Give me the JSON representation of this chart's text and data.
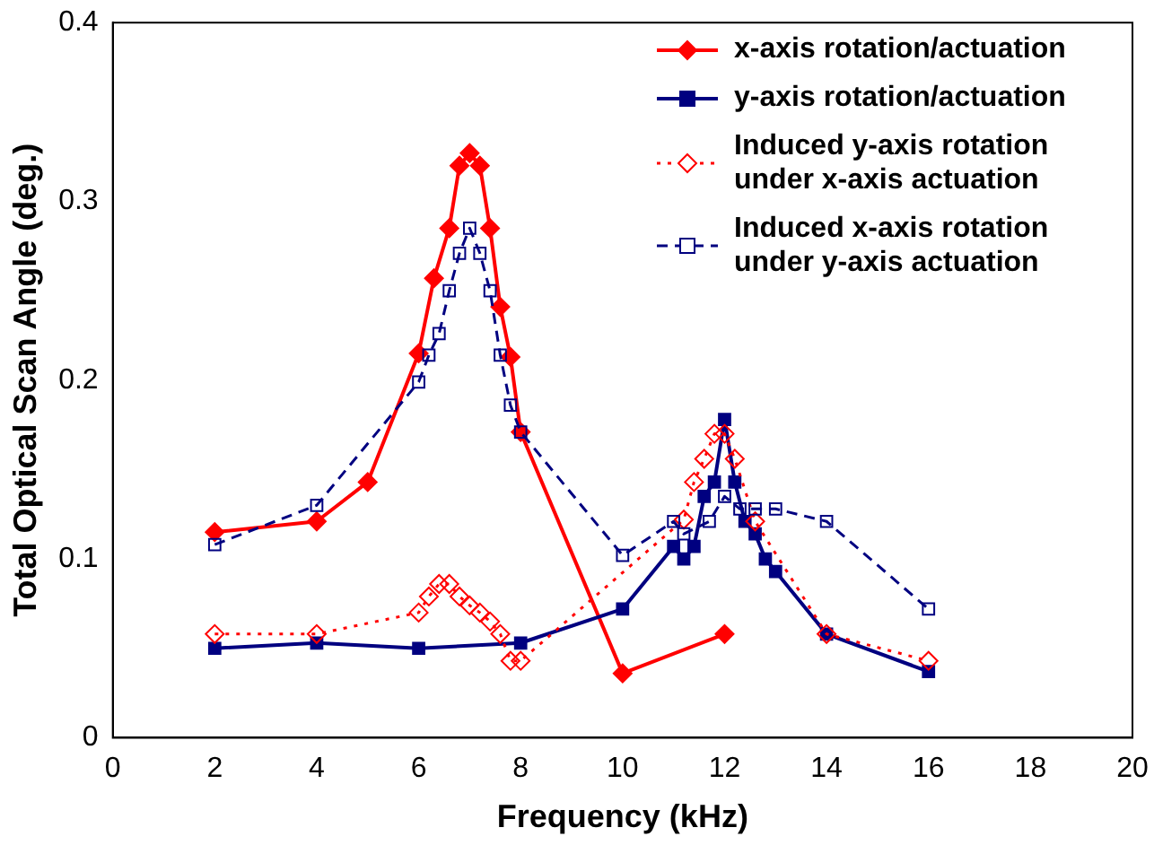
{
  "chart_data": {
    "type": "line",
    "xlabel": "Frequency (kHz)",
    "ylabel": "Total Optical Scan Angle (deg.)",
    "xlim": [
      0,
      20
    ],
    "xticks": [
      0,
      2,
      4,
      6,
      8,
      10,
      12,
      14,
      16,
      18,
      20
    ],
    "ylim": [
      0,
      0.4
    ],
    "yticks": [
      0,
      0.1,
      0.2,
      0.3,
      0.4
    ],
    "grid": false,
    "legend": "top right",
    "series": [
      {
        "name": "x-axis rotation/actuation",
        "color": "#ff0000",
        "marker": "diamond",
        "line_style": "solid",
        "x": [
          2,
          4,
          5,
          6,
          6.3,
          6.6,
          6.8,
          7,
          7.2,
          7.4,
          7.6,
          7.8,
          8,
          10,
          12
        ],
        "values": [
          0.115,
          0.121,
          0.143,
          0.215,
          0.257,
          0.285,
          0.32,
          0.327,
          0.32,
          0.285,
          0.241,
          0.213,
          0.171,
          0.036,
          0.058
        ]
      },
      {
        "name": "y-axis rotation/actuation",
        "color": "#000080",
        "marker": "square",
        "line_style": "solid",
        "x": [
          2,
          4,
          6,
          8,
          10,
          11,
          11.2,
          11.4,
          11.6,
          11.8,
          12,
          12.2,
          12.4,
          12.6,
          12.8,
          13,
          14,
          16
        ],
        "values": [
          0.05,
          0.053,
          0.05,
          0.053,
          0.072,
          0.107,
          0.1,
          0.107,
          0.135,
          0.143,
          0.178,
          0.143,
          0.121,
          0.114,
          0.1,
          0.093,
          0.058,
          0.037
        ]
      },
      {
        "name": "Induced y-axis rotation under x-axis actuation",
        "color": "#ff0000",
        "marker": "diamond",
        "line_style": "dotted",
        "x": [
          2,
          4,
          6,
          6.2,
          6.4,
          6.6,
          6.8,
          7,
          7.2,
          7.4,
          7.6,
          7.8,
          8,
          11.2,
          11.4,
          11.6,
          11.8,
          12,
          12.2,
          12.6,
          14,
          16
        ],
        "values": [
          0.058,
          0.058,
          0.07,
          0.079,
          0.086,
          0.086,
          0.079,
          0.074,
          0.07,
          0.065,
          0.058,
          0.043,
          0.043,
          0.122,
          0.143,
          0.156,
          0.17,
          0.17,
          0.156,
          0.121,
          0.058,
          0.043
        ]
      },
      {
        "name": "Induced x-axis rotation under y-axis actuation",
        "color": "#000080",
        "marker": "square",
        "line_style": "dashed",
        "x": [
          2,
          4,
          6,
          6.2,
          6.4,
          6.6,
          6.8,
          7,
          7.2,
          7.4,
          7.6,
          7.8,
          8,
          10,
          11,
          11.2,
          11.7,
          12,
          12.3,
          12.6,
          13,
          14,
          16
        ],
        "values": [
          0.108,
          0.13,
          0.199,
          0.214,
          0.226,
          0.25,
          0.271,
          0.285,
          0.271,
          0.25,
          0.214,
          0.186,
          0.171,
          0.102,
          0.121,
          0.114,
          0.121,
          0.135,
          0.128,
          0.128,
          0.128,
          0.121,
          0.072
        ]
      }
    ]
  }
}
